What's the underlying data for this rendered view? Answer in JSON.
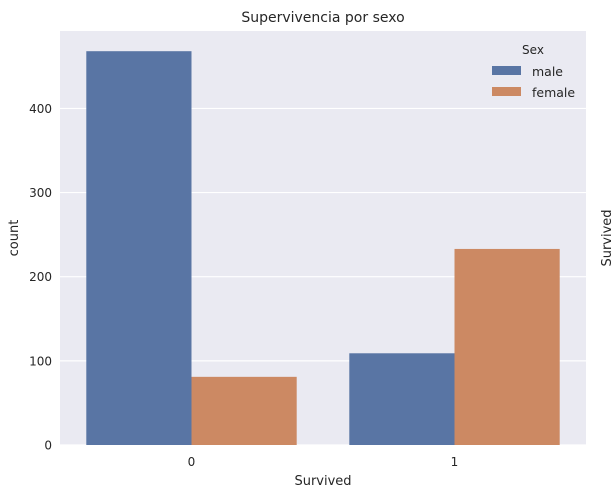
{
  "chart_data": {
    "type": "bar",
    "title": "Supervivencia por sexo",
    "xlabel": "Survived",
    "ylabel": "count",
    "right_label": "Survived",
    "categories": [
      "0",
      "1"
    ],
    "series": [
      {
        "name": "male",
        "values": [
          468,
          109
        ],
        "color": "#5975a4"
      },
      {
        "name": "female",
        "values": [
          81,
          233
        ],
        "color": "#cc8963"
      }
    ],
    "yticks": [
      0,
      100,
      200,
      300,
      400
    ],
    "ylim": [
      0,
      492
    ],
    "legend": {
      "title": "Sex",
      "position": "top-right"
    },
    "grid": true,
    "background": "#eaeaf2"
  }
}
